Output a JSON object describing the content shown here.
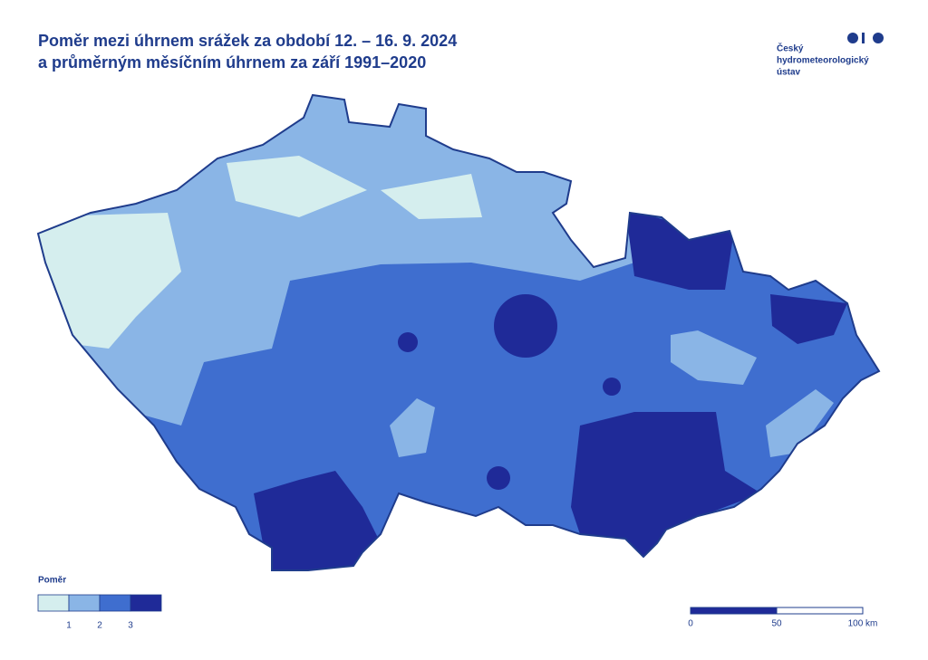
{
  "header": {
    "title": [
      "Poměr mezi úhrnem srážek za období 12. – 16. 9. 2024",
      "a průměrným měsíčním úhrnem za září 1991–2020"
    ]
  },
  "logo": {
    "lines": [
      "Český",
      "hydrometeorologický",
      "ústav"
    ]
  },
  "legend": {
    "title": "Poměr",
    "colors": [
      "#d5eeee",
      "#8ab5e6",
      "#3f6ecf",
      "#1f2a98"
    ],
    "labels": [
      1,
      2,
      3
    ]
  },
  "scale_bar": {
    "labels": [
      "0",
      "50",
      "100 km"
    ]
  }
}
